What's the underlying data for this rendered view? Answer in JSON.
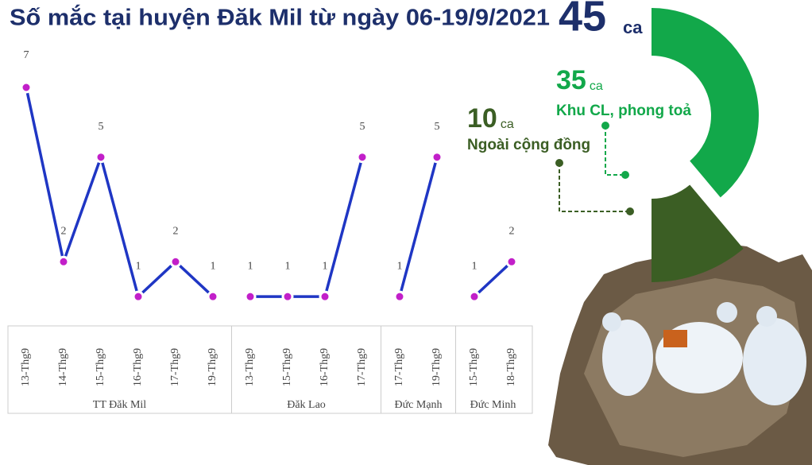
{
  "chart_data": [
    {
      "type": "line",
      "title": "Số mắc tại huyện Đăk Mil từ ngày 06-19/9/2021",
      "color": "#1f36c4",
      "marker_color": "#c21fc9",
      "groups": [
        {
          "name": "TT Đăk Mil",
          "categories": [
            "13-Thg9",
            "14-Thg9",
            "15-Thg9",
            "16-Thg9",
            "17-Thg9",
            "19-Thg9"
          ],
          "values": [
            7,
            2,
            5,
            1,
            2,
            1
          ]
        },
        {
          "name": "Đăk Lao",
          "categories": [
            "13-Thg9",
            "15-Thg9",
            "16-Thg9",
            "17-Thg9"
          ],
          "values": [
            1,
            1,
            1,
            5
          ]
        },
        {
          "name": "Đức Mạnh",
          "categories": [
            "17-Thg9",
            "19-Thg9"
          ],
          "values": [
            1,
            5
          ]
        },
        {
          "name": "Đức Minh",
          "categories": [
            "15-Thg9",
            "18-Thg9"
          ],
          "values": [
            1,
            2
          ]
        }
      ]
    },
    {
      "type": "pie",
      "total": 45,
      "unit": "ca",
      "categories": [
        "Khu CL, phong toả",
        "Ngoài cộng đồng"
      ],
      "values": [
        35,
        10
      ],
      "colors": [
        "#12a84a",
        "#3b5e24"
      ]
    }
  ]
}
